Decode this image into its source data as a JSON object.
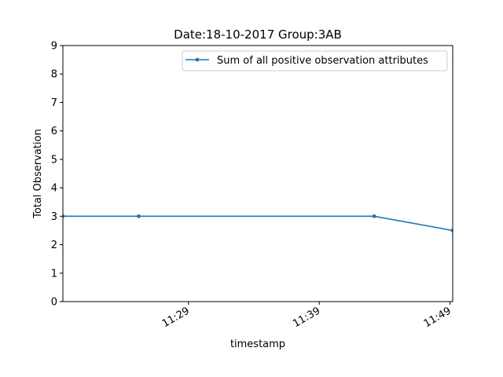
{
  "chart_data": {
    "type": "line",
    "title": "Date:18-10-2017  Group:3AB",
    "xlabel": "timestamp",
    "ylabel": "Total Observation",
    "x_ticks": [
      "11:29",
      "11:39",
      "11:49"
    ],
    "x_tick_minutes": [
      689,
      699,
      709
    ],
    "y_ticks": [
      "0",
      "1",
      "2",
      "3",
      "4",
      "5",
      "6",
      "7",
      "8",
      "9"
    ],
    "xlim": [
      "11:19.4",
      "11:49.2"
    ],
    "xlim_minutes": [
      679.4,
      709.2
    ],
    "ylim": [
      0,
      9
    ],
    "legend_position": "top-right",
    "grid": false,
    "series": [
      {
        "name": "Sum of all positive observation attributes",
        "color": "#1f77b4",
        "x": [
          "11:19.4",
          "11:25.2",
          "11:43.2",
          "11:49.2"
        ],
        "x_minutes": [
          679.4,
          685.2,
          703.2,
          709.2
        ],
        "y": [
          3,
          3,
          3,
          2.5
        ]
      }
    ]
  }
}
